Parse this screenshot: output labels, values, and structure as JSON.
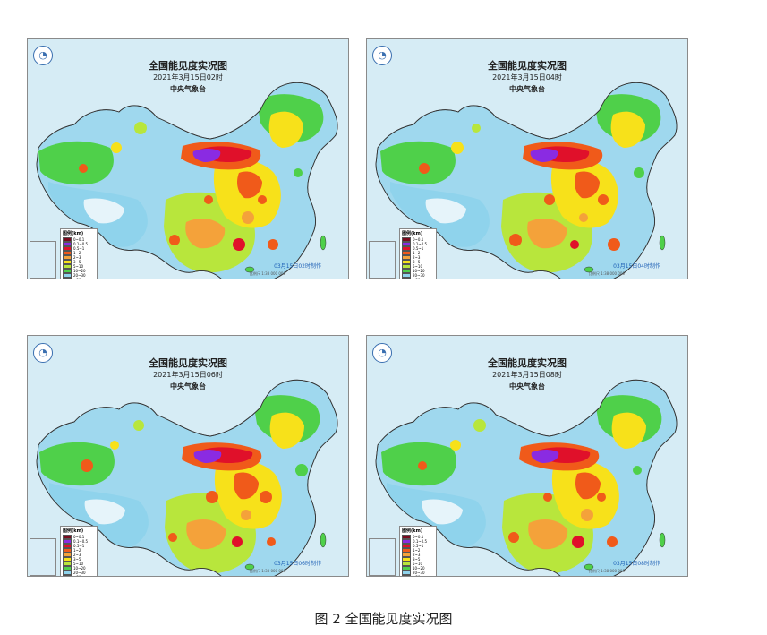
{
  "panels": [
    {
      "title": "全国能见度实况图",
      "datetime": "2021年3月15日02时",
      "agency": "中央气象台",
      "stamp": "03月15日02时制作",
      "logo": "cma-logo-icon"
    },
    {
      "title": "全国能见度实况图",
      "datetime": "2021年3月15日04时",
      "agency": "中央气象台",
      "stamp": "03月15日04时制作",
      "logo": "cma-logo-icon"
    },
    {
      "title": "全国能见度实况图",
      "datetime": "2021年3月15日06时",
      "agency": "中央气象台",
      "stamp": "03月15日06时制作",
      "logo": "cma-logo-icon"
    },
    {
      "title": "全国能见度实况图",
      "datetime": "2021年3月15日08时",
      "agency": "中央气象台",
      "stamp": "03月15日08时制作",
      "logo": "cma-logo-icon"
    }
  ],
  "legend": {
    "heading": "图例(km)",
    "items": [
      {
        "label": "0~0.1",
        "color": "#7a0a1e"
      },
      {
        "label": "0.1~0.5",
        "color": "#8a2be2"
      },
      {
        "label": "0.5~1",
        "color": "#e0102a"
      },
      {
        "label": "1~2",
        "color": "#f05a1a"
      },
      {
        "label": "2~3",
        "color": "#f4a23a"
      },
      {
        "label": "3~5",
        "color": "#f7e11a"
      },
      {
        "label": "5~10",
        "color": "#b8e63c"
      },
      {
        "label": "10~20",
        "color": "#4fd04a"
      },
      {
        "label": "20~30",
        "color": "#8fd3ec"
      },
      {
        "label": ">30",
        "color": "#e6f4fa"
      }
    ]
  },
  "scale_text": "比例尺 1:38 000 000",
  "caption": "图 2  全国能见度实况图"
}
